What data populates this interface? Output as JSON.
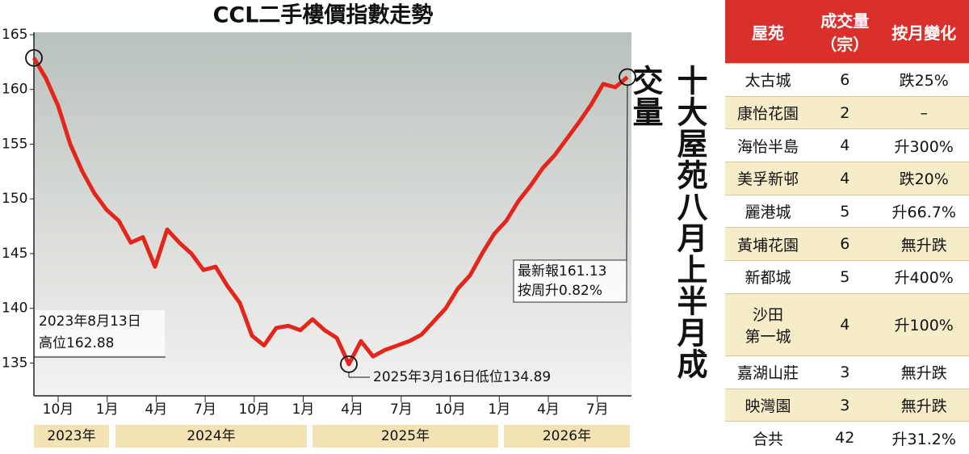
{
  "chart_data": {
    "type": "line",
    "title": "CCL二手樓價指數走勢",
    "color": "#e3261c",
    "values": [
      162.88,
      161,
      158.5,
      155,
      152.5,
      150.5,
      149,
      148,
      146,
      146.5,
      143.8,
      147.2,
      146,
      145,
      143.5,
      143.8,
      142,
      140.5,
      137.5,
      136.6,
      138.2,
      138.4,
      138,
      139,
      138,
      137.3,
      134.89,
      137,
      135.6,
      136.2,
      136.6,
      137,
      137.6,
      138.8,
      140,
      141.8,
      143,
      145,
      146.8,
      148,
      149.8,
      151.2,
      152.8,
      154,
      155.5,
      157,
      158.6,
      160.5,
      160.2,
      161.13
    ],
    "ylim": [
      132,
      165
    ],
    "yticks": [
      135,
      140,
      145,
      150,
      155,
      160,
      165
    ],
    "month_labels": [
      "10月",
      "1月",
      "4月",
      "7月",
      "10月",
      "1月",
      "4月",
      "7月",
      "10月",
      "1月",
      "4月",
      "7月"
    ],
    "year_labels": [
      "2023年",
      "2024年",
      "2025年",
      "2026年"
    ],
    "annotations": [
      "2023年8月13日",
      "高位162.88",
      "2025年3月16日低位134.89",
      "最新報161.13",
      "按周升0.82%"
    ]
  },
  "side_title": "十大屋苑八月上半月成交量",
  "table": {
    "header": [
      "屋苑",
      "成交量\n（宗）",
      "按月變化"
    ],
    "rows": [
      [
        "太古城",
        "6",
        "跌25%"
      ],
      [
        "康怡花園",
        "2",
        "–"
      ],
      [
        "海怡半島",
        "4",
        "升300%"
      ],
      [
        "美孚新邨",
        "4",
        "跌20%"
      ],
      [
        "麗港城",
        "5",
        "升66.7%"
      ],
      [
        "黃埔花園",
        "6",
        "無升跌"
      ],
      [
        "新都城",
        "5",
        "升400%"
      ],
      [
        "沙田\n第一城",
        "4",
        "升100%"
      ],
      [
        "嘉湖山莊",
        "3",
        "無升跌"
      ],
      [
        "映灣園",
        "3",
        "無升跌"
      ],
      [
        "合共",
        "42",
        "升31.2%"
      ]
    ]
  }
}
